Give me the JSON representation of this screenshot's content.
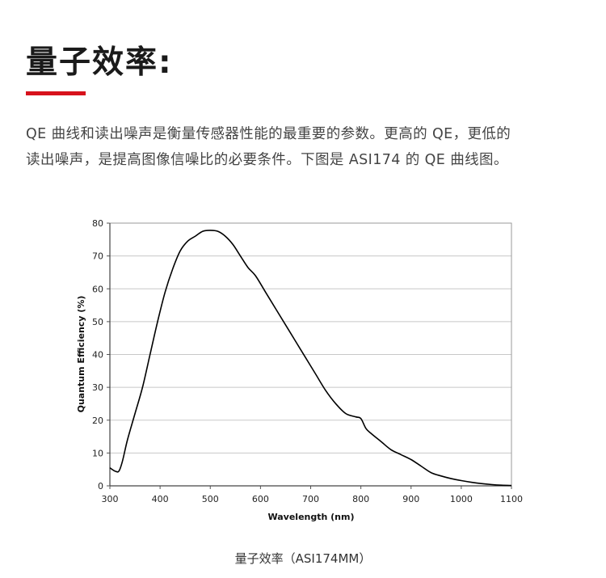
{
  "heading": "量子效率:",
  "intro": {
    "line1": "QE 曲线和读出噪声是衡量传感器性能的最重要的参数。更高的 QE，更低的",
    "line2": "读出噪声，是提高图像信噪比的必要条件。下图是 ASI174 的 QE 曲线图。"
  },
  "caption": "量子效率（ASI174MM）",
  "colors": {
    "accent": "#d7121c",
    "curve": "#000000",
    "grid": "#c8c8c8"
  },
  "chart_data": {
    "type": "line",
    "xlabel": "Wavelength (nm)",
    "ylabel": "Quantum Efficiency (%)",
    "xlim": [
      300,
      1100
    ],
    "ylim": [
      0,
      80
    ],
    "xticks": [
      "300",
      "400",
      "500",
      "600",
      "700",
      "800",
      "900",
      "1000",
      "1100"
    ],
    "yticks": [
      "0",
      "10",
      "20",
      "30",
      "40",
      "50",
      "60",
      "70",
      "80"
    ],
    "grid": "horizontal",
    "legend": "none",
    "series": [
      {
        "x": [
          300,
          310,
          318,
          325,
          335,
          350,
          365,
          380,
          395,
          410,
          425,
          440,
          455,
          470,
          485,
          500,
          515,
          530,
          545,
          560,
          575,
          590,
          610,
          630,
          650,
          670,
          690,
          710,
          730,
          750,
          770,
          790,
          800,
          810,
          820,
          840,
          860,
          880,
          900,
          920,
          940,
          960,
          980,
          1000,
          1020,
          1040,
          1060,
          1080,
          1100
        ],
        "y": [
          5.5,
          4.5,
          4.5,
          7.5,
          14,
          22,
          30,
          40,
          50,
          59,
          66,
          71.5,
          74.5,
          76,
          77.5,
          77.8,
          77.5,
          76,
          73.5,
          70,
          66.5,
          64,
          59,
          54,
          49,
          44,
          39,
          34,
          29,
          25,
          22,
          21,
          20.5,
          17.5,
          16,
          13.5,
          11,
          9.5,
          8,
          6,
          4,
          3,
          2.2,
          1.6,
          1.1,
          0.7,
          0.4,
          0.2,
          0.1
        ]
      }
    ]
  }
}
